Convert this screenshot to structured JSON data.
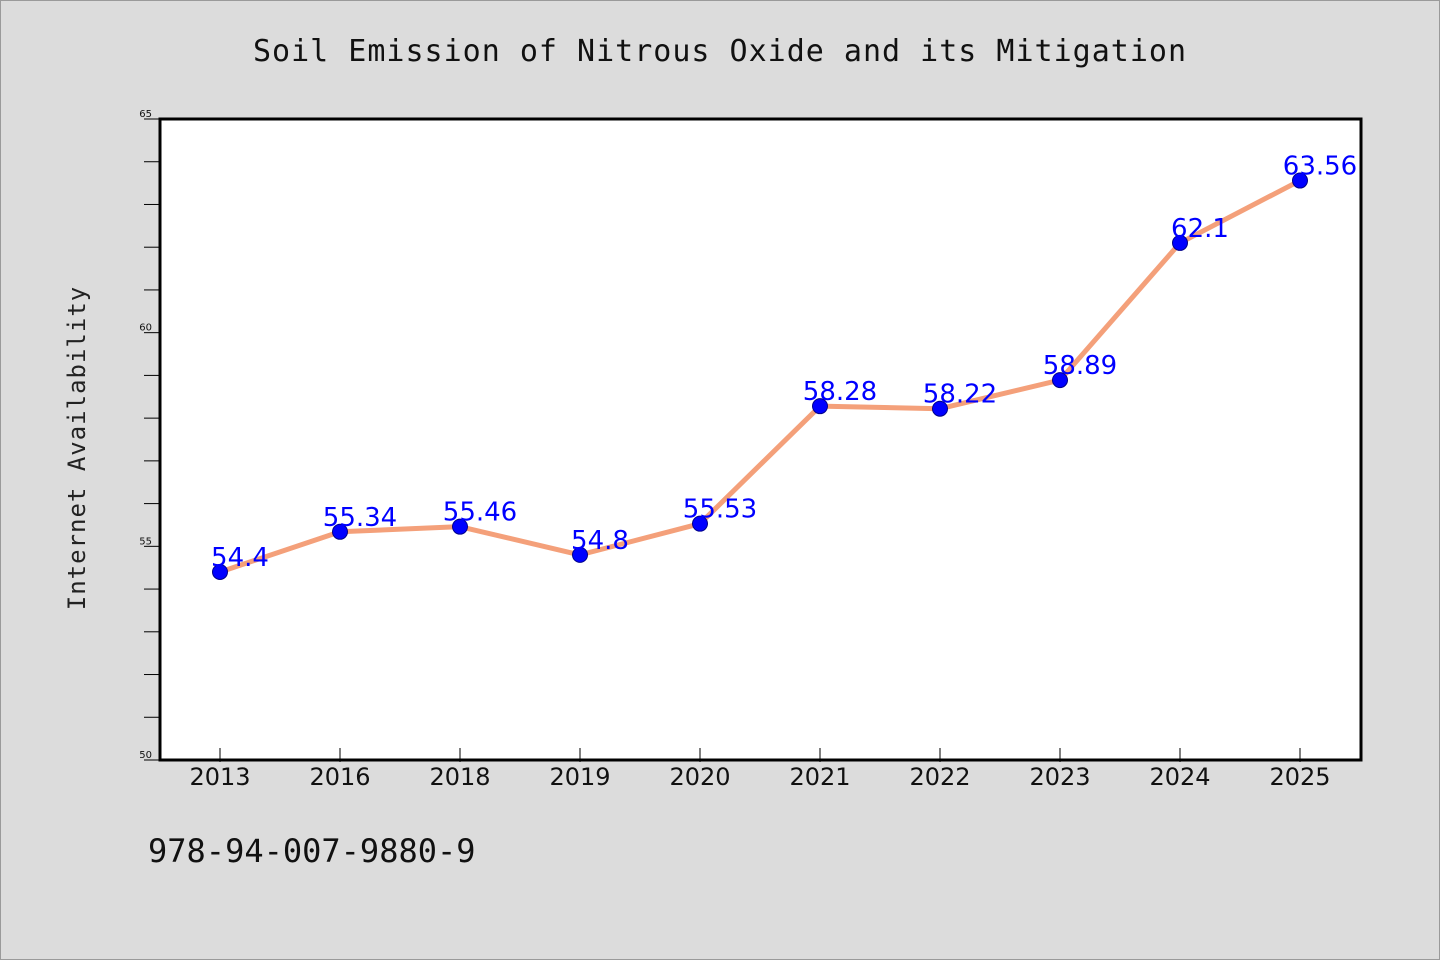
{
  "chart_data": {
    "type": "line",
    "title": "Soil Emission of Nitrous Oxide and its Mitigation",
    "xlabel": "",
    "ylabel": "Internet Availability",
    "categories": [
      "2013",
      "2016",
      "2018",
      "2019",
      "2020",
      "2021",
      "2022",
      "2023",
      "2024",
      "2025"
    ],
    "series": [
      {
        "values": [
          54.4,
          55.34,
          55.46,
          54.8,
          55.53,
          58.28,
          58.22,
          58.89,
          62.1,
          63.56
        ],
        "data_labels": [
          "54.4",
          "55.34",
          "55.46",
          "54.8",
          "55.53",
          "58.28",
          "58.22",
          "58.89",
          "62.1",
          "63.56"
        ],
        "line_color": "#f4a07a",
        "marker_color": "#0000ff"
      }
    ],
    "ylim": [
      50,
      65
    ],
    "y_major_ticks": [
      50,
      55,
      60,
      65
    ],
    "y_minor_step": 1,
    "grid": false,
    "label_color": "#0000ff"
  },
  "footer_text": "978-94-007-9880-9",
  "colors": {
    "background": "#dcdcdc",
    "plot_background": "#ffffff"
  }
}
